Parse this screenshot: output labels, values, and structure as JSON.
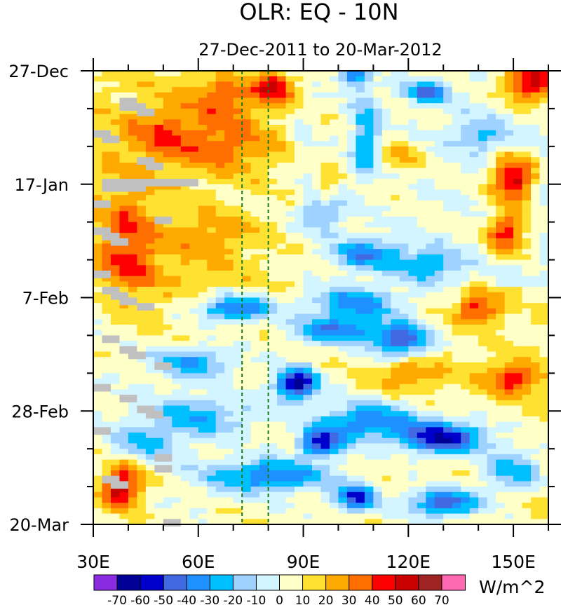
{
  "chart_data": {
    "type": "heatmap",
    "title": "OLR: EQ - 10N",
    "subtitle": "27-Dec-2011 to 20-Mar-2012",
    "units": "W/m^2",
    "x_range": [
      30,
      160
    ],
    "x_ticks": [
      {
        "value": 30,
        "label": "30E"
      },
      {
        "value": 60,
        "label": "60E"
      },
      {
        "value": 90,
        "label": "90E"
      },
      {
        "value": 120,
        "label": "120E"
      },
      {
        "value": 150,
        "label": "150E"
      }
    ],
    "y_range_days": [
      0,
      84
    ],
    "y_ticks": [
      {
        "value": 0,
        "label": "27-Dec"
      },
      {
        "value": 21,
        "label": "17-Jan"
      },
      {
        "value": 42,
        "label": "7-Feb"
      },
      {
        "value": 63,
        "label": "28-Feb"
      },
      {
        "value": 84,
        "label": "20-Mar"
      }
    ],
    "reference_lines_lon": [
      72.5,
      80
    ],
    "colorbar": {
      "levels": [
        -70,
        -60,
        -50,
        -40,
        -30,
        -20,
        -10,
        0,
        10,
        20,
        30,
        40,
        50,
        60,
        70
      ],
      "level_labels": [
        "-70",
        "-60",
        "-50",
        "-40",
        "-30",
        "-20",
        "-10",
        "0",
        "10",
        "20",
        "30",
        "40",
        "50",
        "60",
        "70"
      ],
      "colors": [
        "#8a2be2",
        "#000096",
        "#0000cd",
        "#4169e1",
        "#1e90ff",
        "#00bfff",
        "#a0d2ff",
        "#d2f5ff",
        "#ffffc8",
        "#ffe132",
        "#ffaa00",
        "#ff6e00",
        "#ff0000",
        "#c80000",
        "#a02323",
        "#ff69b4"
      ],
      "missing_color": "#c0c0c0"
    },
    "grid_resolution": {
      "lon_step": 2.5,
      "day_step": 1
    }
  }
}
